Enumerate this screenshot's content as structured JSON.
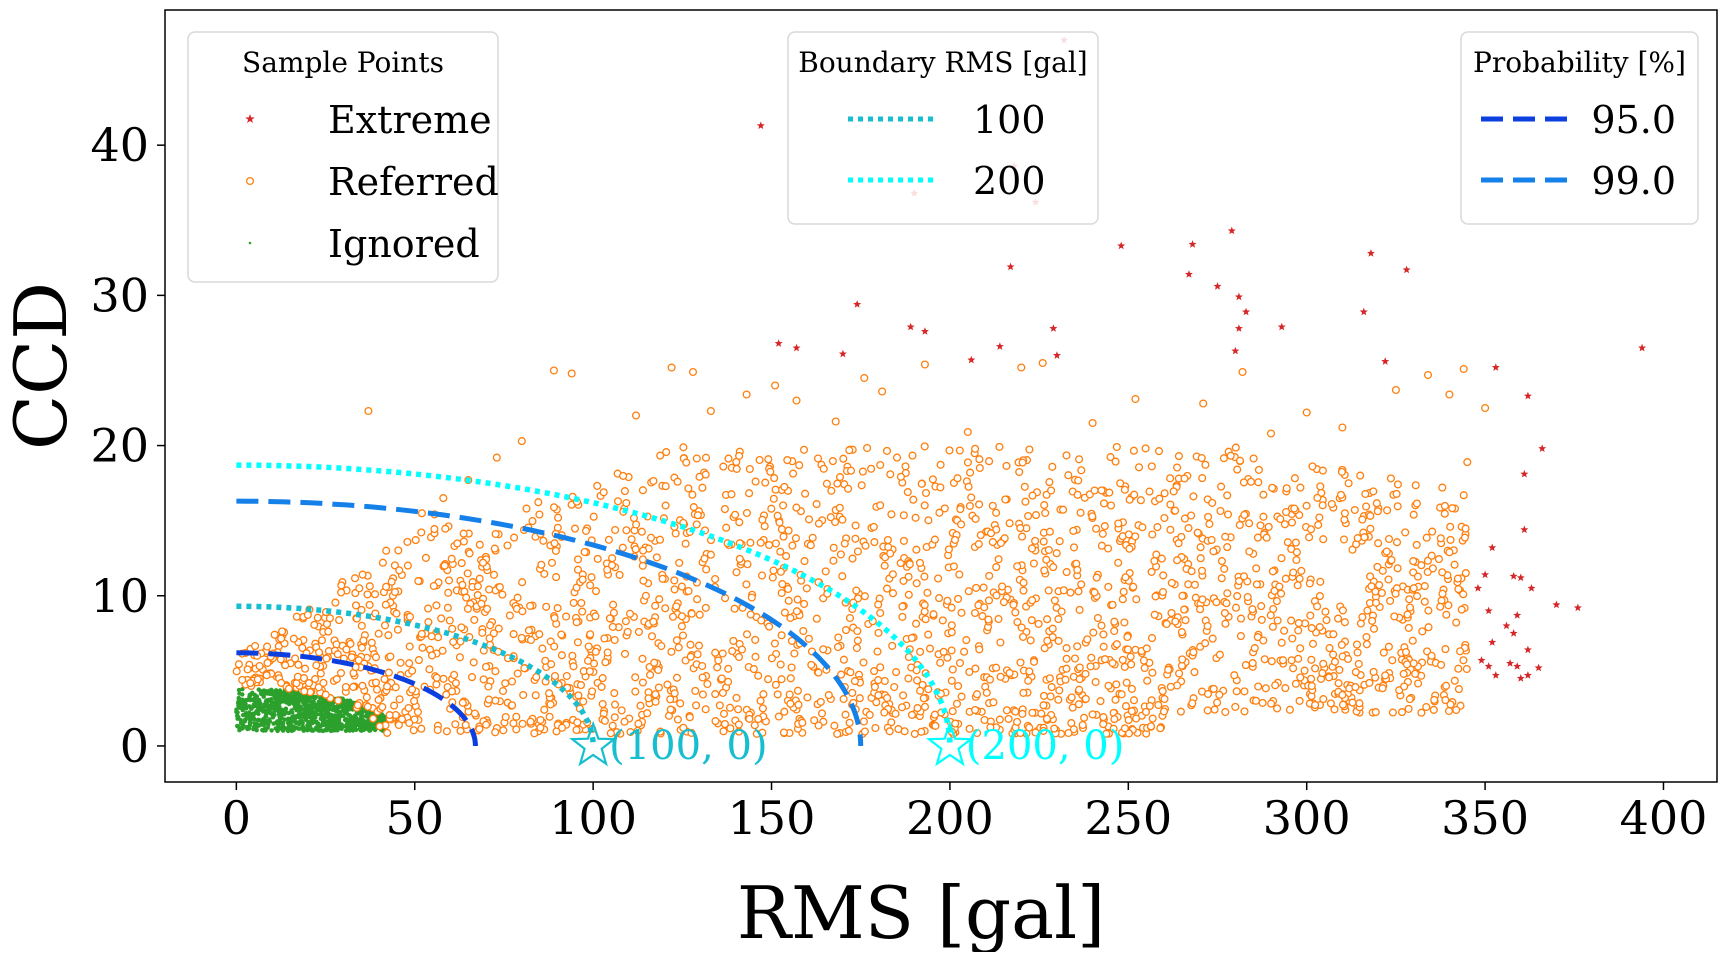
{
  "chart_data": {
    "type": "scatter",
    "xlabel": "RMS [gal]",
    "ylabel": "CCD",
    "xlim": [
      -20,
      415
    ],
    "ylim": [
      -2.4,
      49
    ],
    "xticks": [
      0,
      50,
      100,
      150,
      200,
      250,
      300,
      350,
      400
    ],
    "yticks": [
      0,
      10,
      20,
      30,
      40
    ],
    "grid": false,
    "legends": [
      {
        "title": "Sample Points",
        "placement": "top-left",
        "entries": [
          {
            "label": "Extreme",
            "marker": "star",
            "color": "#d62728"
          },
          {
            "label": "Referred",
            "marker": "open-circle",
            "color": "#ff7f0e"
          },
          {
            "label": "Ignored",
            "marker": "dot",
            "color": "#2ca02c"
          }
        ]
      },
      {
        "title": "Boundary RMS [gal]",
        "placement": "top-center",
        "entries": [
          {
            "label": "100",
            "linestyle": "dotted",
            "color": "#17becf"
          },
          {
            "label": "200",
            "linestyle": "dotted",
            "color": "#00ffff"
          }
        ]
      },
      {
        "title": "Probability [%]",
        "placement": "top-right",
        "entries": [
          {
            "label": "95.0",
            "linestyle": "dashed",
            "color": "#0b3fe0"
          },
          {
            "label": "99.0",
            "linestyle": "dashed",
            "color": "#1580e8"
          }
        ]
      }
    ],
    "curves": [
      {
        "name": "95.0",
        "style": "dashed",
        "color": "#0b3fe0",
        "x_intercept": 67,
        "y_intercept": 6.2
      },
      {
        "name": "99.0",
        "style": "dashed",
        "color": "#1580e8",
        "x_intercept": 175,
        "y_intercept": 16.3
      },
      {
        "name": "100",
        "style": "dotted",
        "color": "#17becf",
        "x_intercept": 100,
        "y_intercept": 9.3
      },
      {
        "name": "200",
        "style": "dotted",
        "color": "#00ffff",
        "x_intercept": 200,
        "y_intercept": 18.7
      }
    ],
    "annotations": [
      {
        "text": "(100, 0)",
        "x": 100,
        "y": 0,
        "marker": "star",
        "color": "#17becf"
      },
      {
        "text": "(200, 0)",
        "x": 200,
        "y": 0,
        "marker": "star",
        "color": "#00ffff"
      }
    ],
    "series": [
      {
        "name": "Extreme",
        "marker": "star",
        "color": "#d62728",
        "points": [
          [
            147,
            41.3
          ],
          [
            190,
            36.8
          ],
          [
            218,
            38.6
          ],
          [
            224,
            36.2
          ],
          [
            232,
            47.0
          ],
          [
            152,
            26.8
          ],
          [
            157,
            26.5
          ],
          [
            170,
            26.1
          ],
          [
            174,
            29.4
          ],
          [
            189,
            27.9
          ],
          [
            193,
            27.6
          ],
          [
            206,
            25.7
          ],
          [
            214,
            26.6
          ],
          [
            217,
            31.9
          ],
          [
            229,
            27.8
          ],
          [
            230,
            26.0
          ],
          [
            248,
            33.3
          ],
          [
            268,
            33.4
          ],
          [
            267,
            31.4
          ],
          [
            275,
            30.6
          ],
          [
            279,
            34.3
          ],
          [
            281,
            29.9
          ],
          [
            281,
            27.8
          ],
          [
            283,
            28.9
          ],
          [
            280,
            26.3
          ],
          [
            293,
            27.9
          ],
          [
            316,
            28.9
          ],
          [
            318,
            32.8
          ],
          [
            322,
            25.6
          ],
          [
            328,
            31.7
          ],
          [
            353,
            25.2
          ],
          [
            394,
            26.5
          ],
          [
            362,
            23.3
          ],
          [
            366,
            19.8
          ],
          [
            361,
            18.1
          ],
          [
            361,
            14.4
          ],
          [
            352,
            13.2
          ],
          [
            350,
            11.4
          ],
          [
            358,
            11.3
          ],
          [
            360,
            11.2
          ],
          [
            348,
            10.5
          ],
          [
            363,
            10.5
          ],
          [
            370,
            9.4
          ],
          [
            376,
            9.2
          ],
          [
            351,
            9.0
          ],
          [
            359,
            8.7
          ],
          [
            356,
            8.0
          ],
          [
            358,
            7.5
          ],
          [
            352,
            6.9
          ],
          [
            362,
            6.4
          ],
          [
            349,
            5.7
          ],
          [
            351,
            5.3
          ],
          [
            357,
            5.5
          ],
          [
            359,
            5.3
          ],
          [
            365,
            5.2
          ],
          [
            353,
            4.7
          ],
          [
            362,
            4.7
          ],
          [
            360,
            4.5
          ]
        ]
      },
      {
        "name": "Referred",
        "marker": "open-circle",
        "color": "#ff7f0e",
        "points": [
          [
            37,
            22.3
          ],
          [
            89,
            25.0
          ],
          [
            94,
            24.8
          ],
          [
            122,
            25.2
          ],
          [
            128,
            24.9
          ],
          [
            143,
            23.4
          ],
          [
            151,
            24.0
          ],
          [
            157,
            23.0
          ],
          [
            176,
            24.5
          ],
          [
            181,
            23.6
          ],
          [
            193,
            25.4
          ],
          [
            220,
            25.2
          ],
          [
            226,
            25.5
          ],
          [
            252,
            23.1
          ],
          [
            271,
            22.8
          ],
          [
            282,
            24.9
          ],
          [
            300,
            22.2
          ],
          [
            325,
            23.7
          ],
          [
            334,
            24.7
          ],
          [
            344,
            25.1
          ],
          [
            350,
            22.5
          ],
          [
            340,
            23.4
          ],
          [
            80,
            20.3
          ],
          [
            73,
            19.2
          ],
          [
            65,
            17.7
          ],
          [
            58,
            16.5
          ],
          [
            52,
            15.5
          ],
          [
            112,
            22.0
          ],
          [
            133,
            22.3
          ],
          [
            168,
            21.6
          ],
          [
            205,
            20.9
          ],
          [
            240,
            21.5
          ],
          [
            290,
            20.8
          ],
          [
            310,
            21.2
          ],
          [
            345,
            18.9
          ],
          [
            338,
            17.2
          ],
          [
            330,
            15.4
          ],
          [
            340,
            12.9
          ],
          [
            343,
            6.3
          ],
          [
            335,
            6.0
          ],
          [
            330,
            5.5
          ],
          [
            322,
            4.7
          ],
          [
            310,
            3.4
          ],
          [
            298,
            3.0
          ],
          [
            280,
            2.6
          ],
          [
            260,
            2.3
          ],
          [
            240,
            2.1
          ],
          [
            330,
            10.5
          ],
          [
            320,
            13.5
          ],
          [
            315,
            18.0
          ]
        ],
        "cloud": {
          "x_range": [
            0,
            345
          ],
          "y_range": [
            0.5,
            25.5
          ],
          "count": 2400
        }
      },
      {
        "name": "Ignored",
        "marker": "dot",
        "color": "#2ca02c",
        "cloud": {
          "x_range": [
            0,
            42
          ],
          "y_range": [
            0.9,
            3.8
          ],
          "count": 900
        }
      }
    ]
  }
}
